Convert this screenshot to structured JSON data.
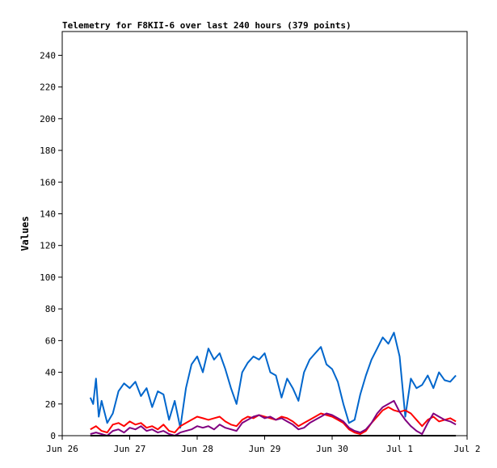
{
  "chart_data": {
    "type": "line",
    "title": "Telemetry for F8KII-6 over last 240 hours (379 points)",
    "xlabel": "",
    "ylabel": "Values",
    "xlim": [
      0,
      144
    ],
    "ylim": [
      0,
      255
    ],
    "x_ticks": [
      {
        "label": "Jun 26",
        "x": 0
      },
      {
        "label": "Jun 27",
        "x": 24
      },
      {
        "label": "Jun 28",
        "x": 48
      },
      {
        "label": "Jun 29",
        "x": 72
      },
      {
        "label": "Jun 30",
        "x": 96
      },
      {
        "label": "Jul 1",
        "x": 120
      },
      {
        "label": "Jul 2",
        "x": 144
      }
    ],
    "y_ticks": [
      0,
      20,
      40,
      60,
      80,
      100,
      120,
      140,
      160,
      180,
      200,
      220,
      240
    ],
    "grid": false,
    "legend": "none",
    "series": [
      {
        "color": "#0066cc",
        "x": [
          10,
          11,
          12,
          13,
          14,
          16,
          18,
          20,
          22,
          24,
          26,
          28,
          30,
          32,
          34,
          36,
          38,
          40,
          42,
          44,
          46,
          48,
          50,
          52,
          54,
          56,
          58,
          60,
          62,
          64,
          66,
          68,
          70,
          72,
          74,
          76,
          78,
          80,
          82,
          84,
          86,
          88,
          90,
          92,
          94,
          96,
          98,
          100,
          102,
          104,
          106,
          108,
          110,
          112,
          114,
          116,
          118,
          120,
          122,
          124,
          126,
          128,
          130,
          132,
          134,
          136,
          138,
          140
        ],
        "y": [
          24,
          20,
          36,
          12,
          22,
          8,
          14,
          28,
          33,
          30,
          34,
          25,
          30,
          18,
          28,
          26,
          10,
          22,
          5,
          30,
          45,
          50,
          40,
          55,
          48,
          52,
          42,
          30,
          20,
          40,
          46,
          50,
          48,
          52,
          40,
          38,
          24,
          36,
          30,
          22,
          40,
          48,
          52,
          56,
          45,
          42,
          34,
          20,
          8,
          10,
          26,
          38,
          48,
          55,
          62,
          58,
          65,
          50,
          12,
          36,
          30,
          32,
          38,
          30,
          40,
          35,
          34,
          38
        ]
      },
      {
        "color": "#ff0000",
        "x": [
          10,
          12,
          14,
          16,
          18,
          20,
          22,
          24,
          26,
          28,
          30,
          32,
          34,
          36,
          38,
          40,
          42,
          44,
          46,
          48,
          50,
          52,
          54,
          56,
          58,
          60,
          62,
          64,
          66,
          68,
          70,
          72,
          74,
          76,
          78,
          80,
          82,
          84,
          86,
          88,
          90,
          92,
          94,
          96,
          98,
          100,
          102,
          104,
          106,
          108,
          110,
          112,
          114,
          116,
          118,
          120,
          122,
          124,
          126,
          128,
          130,
          132,
          134,
          136,
          138,
          140
        ],
        "y": [
          4,
          6,
          3,
          2,
          7,
          8,
          6,
          9,
          7,
          8,
          5,
          6,
          4,
          7,
          3,
          2,
          6,
          8,
          10,
          12,
          11,
          10,
          11,
          12,
          9,
          7,
          6,
          10,
          12,
          11,
          13,
          12,
          11,
          10,
          12,
          11,
          9,
          6,
          8,
          10,
          12,
          14,
          13,
          12,
          10,
          8,
          4,
          2,
          1,
          3,
          8,
          12,
          16,
          18,
          16,
          15,
          16,
          14,
          10,
          6,
          10,
          12,
          9,
          10,
          11,
          9
        ]
      },
      {
        "color": "#800080",
        "x": [
          10,
          12,
          14,
          16,
          18,
          20,
          22,
          24,
          26,
          28,
          30,
          32,
          34,
          36,
          38,
          40,
          42,
          44,
          46,
          48,
          50,
          52,
          54,
          56,
          58,
          60,
          62,
          64,
          66,
          68,
          70,
          72,
          74,
          76,
          78,
          80,
          82,
          84,
          86,
          88,
          90,
          92,
          94,
          96,
          98,
          100,
          102,
          104,
          106,
          108,
          110,
          112,
          114,
          116,
          118,
          120,
          122,
          124,
          126,
          128,
          130,
          132,
          134,
          136,
          138,
          140
        ],
        "y": [
          1,
          2,
          1,
          0,
          3,
          4,
          2,
          5,
          4,
          6,
          3,
          4,
          2,
          3,
          1,
          0,
          2,
          3,
          4,
          6,
          5,
          6,
          4,
          7,
          5,
          4,
          3,
          8,
          10,
          12,
          13,
          11,
          12,
          10,
          11,
          9,
          7,
          4,
          5,
          8,
          10,
          12,
          14,
          13,
          11,
          9,
          5,
          3,
          2,
          4,
          8,
          14,
          18,
          20,
          22,
          15,
          10,
          6,
          3,
          1,
          8,
          14,
          12,
          10,
          9,
          7
        ]
      },
      {
        "color": "#000000",
        "x": [
          10,
          140
        ],
        "y": [
          0,
          0
        ]
      }
    ]
  }
}
